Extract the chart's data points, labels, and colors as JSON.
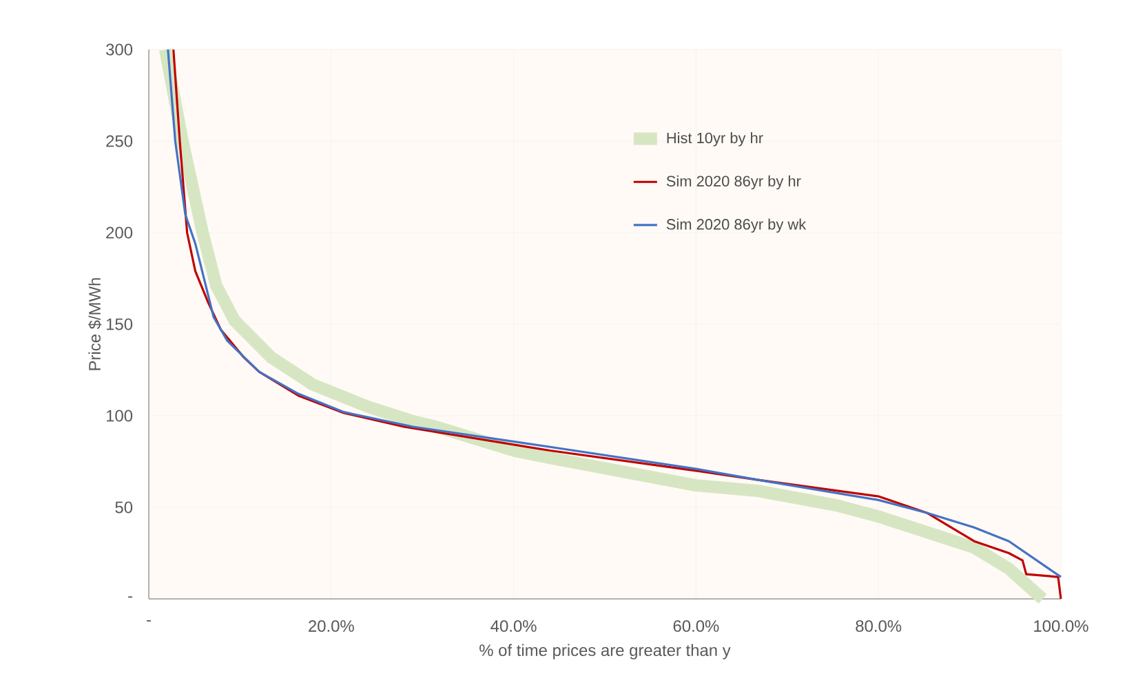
{
  "chart_data": {
    "type": "line",
    "xlabel": "% of time prices are greater than y",
    "ylabel": "Price $/MWh",
    "xlim": [
      0,
      100
    ],
    "ylim": [
      0,
      300
    ],
    "xticks": [
      {
        "value": 0,
        "label": "-"
      },
      {
        "value": 20,
        "label": "20.0%"
      },
      {
        "value": 40,
        "label": "40.0%"
      },
      {
        "value": 60,
        "label": "60.0%"
      },
      {
        "value": 80,
        "label": "80.0%"
      },
      {
        "value": 100,
        "label": "100.0%"
      }
    ],
    "yticks": [
      {
        "value": 0,
        "label": "-"
      },
      50,
      100,
      150,
      200,
      250,
      300
    ],
    "grid": true,
    "legend": "top right",
    "marker": "none",
    "line_style": "solid",
    "series": [
      {
        "name": "Hist 10yr by hr",
        "color": "#d6e6c3",
        "x": [
          1.8,
          3.7,
          5.9,
          7.4,
          9.4,
          13.4,
          18,
          24,
          29,
          31.5,
          40,
          44,
          60,
          66.8,
          75.5,
          80,
          90.5,
          94.3,
          98
        ],
        "values": [
          300,
          250,
          200,
          171,
          152,
          132,
          117,
          105,
          97,
          94,
          81,
          77,
          62,
          59,
          51,
          45,
          28,
          16.5,
          0
        ]
      },
      {
        "name": "Sim 2020 86yr by hr",
        "color": "#c00000",
        "x": [
          2.7,
          3.4,
          4.2,
          5.1,
          6.5,
          7.9,
          10.4,
          12.1,
          16.4,
          21.4,
          28,
          44,
          60,
          66.8,
          80,
          85.3,
          90.5,
          94.3,
          95.8,
          96.2,
          99.7,
          100
        ],
        "values": [
          300,
          250,
          200,
          179,
          162,
          147,
          132,
          124,
          111,
          101.5,
          94,
          81,
          70,
          65,
          56,
          47,
          31.5,
          25,
          21,
          13.5,
          12,
          0
        ]
      },
      {
        "name": "Sim 2020 86yr by wk",
        "color": "#4472c4",
        "x": [
          2.1,
          2.9,
          4.0,
          5.1,
          7.1,
          8.6,
          12.1,
          16.4,
          21.4,
          29,
          44,
          60,
          66.8,
          80,
          85.3,
          90.5,
          94.3,
          100
        ],
        "values": [
          300,
          250,
          210,
          194,
          154,
          141,
          124,
          112,
          102,
          94,
          83,
          71,
          65,
          54,
          47,
          39,
          31.5,
          12
        ]
      }
    ]
  }
}
